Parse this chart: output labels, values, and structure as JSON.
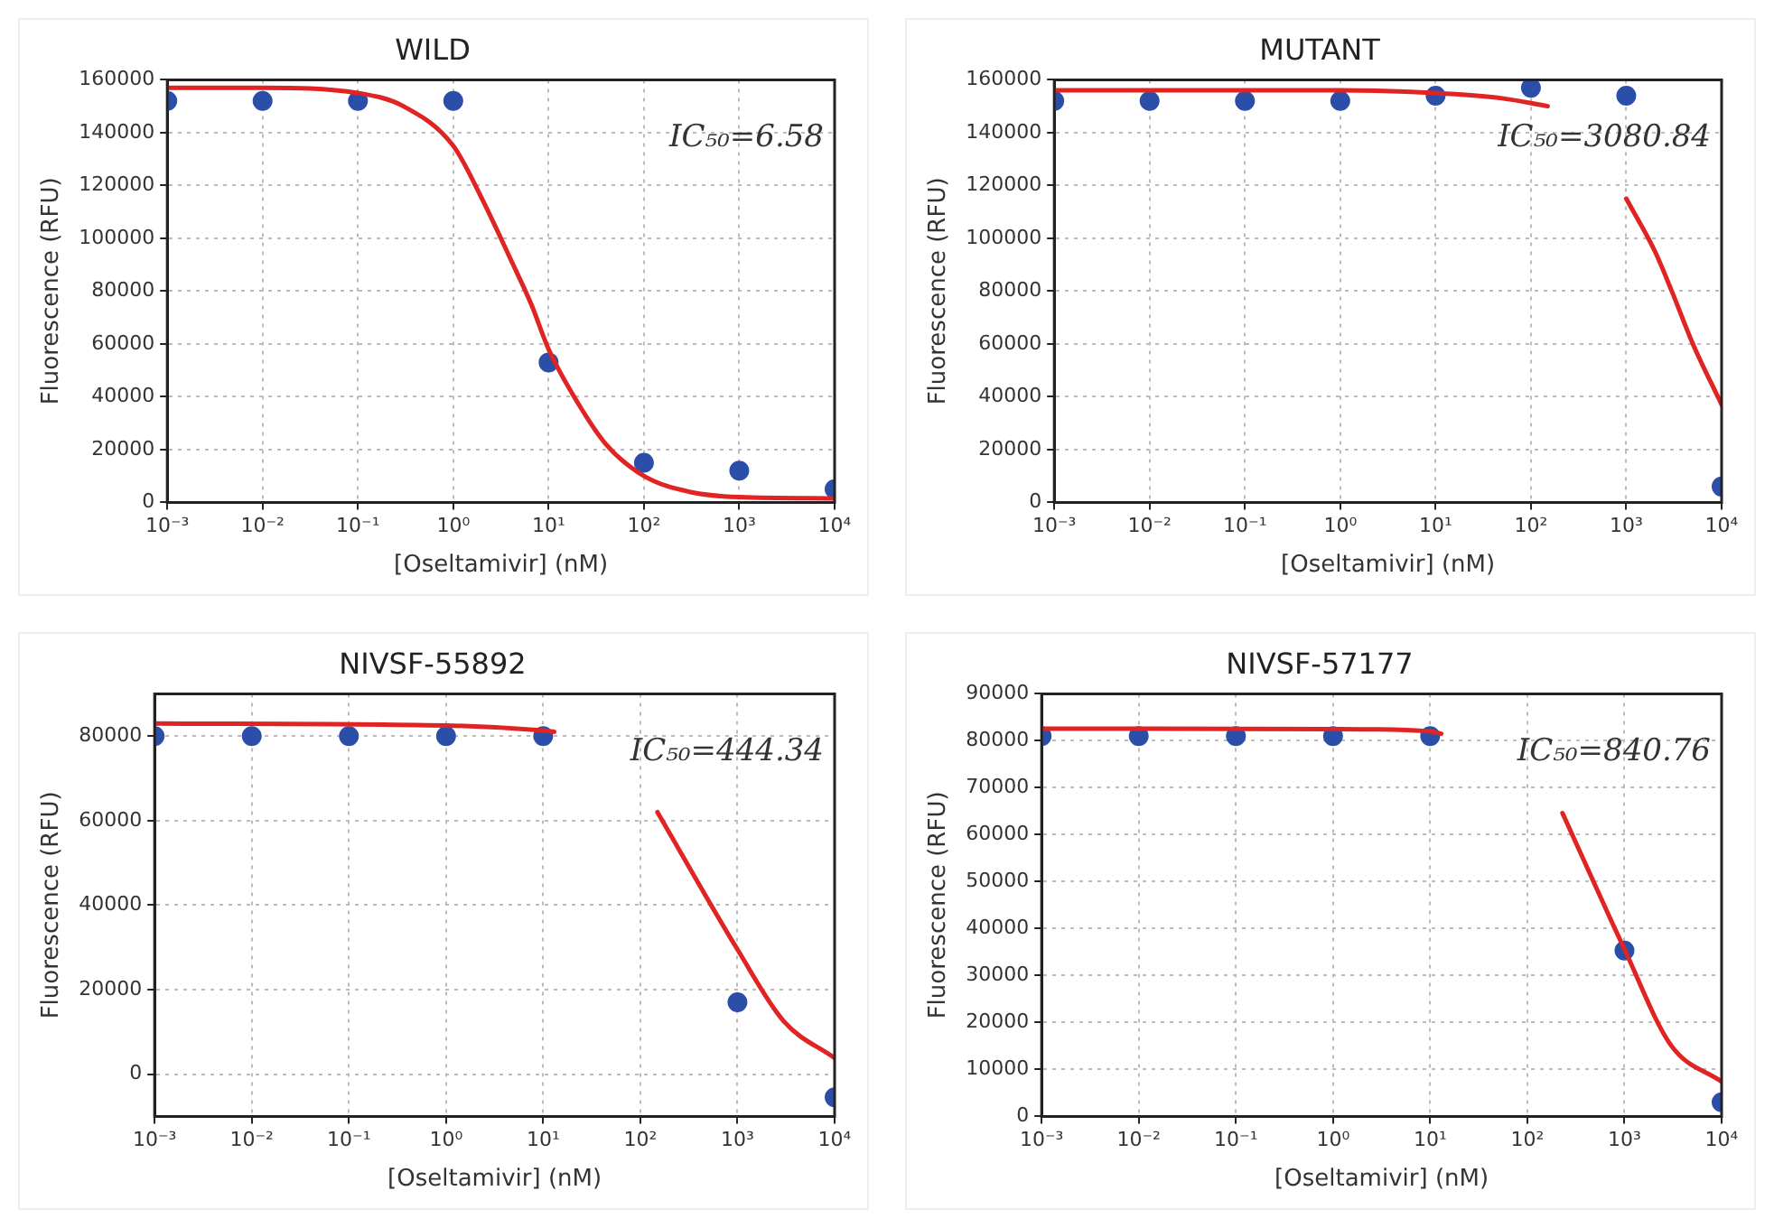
{
  "chart_data": [
    {
      "type": "scatter",
      "title": "WILD",
      "xlabel": "[Oseltamivir] (nM)",
      "ylabel": "Fluorescence (RFU)",
      "log": "x",
      "grid": true,
      "marker": "circle",
      "annotations": [
        "IC₅₀=6.58"
      ],
      "xlim": [
        0.001,
        10000
      ],
      "xticks": [
        {
          "value": 0.001,
          "label": "10⁻³"
        },
        {
          "value": 0.01,
          "label": "10⁻²"
        },
        {
          "value": 0.1,
          "label": "10⁻¹"
        },
        {
          "value": 1,
          "label": "10⁰"
        },
        {
          "value": 10,
          "label": "10¹"
        },
        {
          "value": 100,
          "label": "10²"
        },
        {
          "value": 1000,
          "label": "10³"
        },
        {
          "value": 10000,
          "label": "10⁴"
        }
      ],
      "ylim": [
        0,
        160000
      ],
      "yticks": [
        0,
        20000,
        40000,
        60000,
        80000,
        100000,
        120000,
        140000,
        160000
      ],
      "series": [
        {
          "type": "scatter",
          "color": "#2b4fa8",
          "x": [
            0.001,
            0.01,
            0.1,
            1,
            10,
            100,
            1000,
            10000
          ],
          "values": [
            152000,
            152000,
            152000,
            152000,
            53000,
            15000,
            12000,
            5000
          ]
        },
        {
          "type": "line",
          "marker": "none",
          "color": "#e02424",
          "x": [
            0.001,
            0.01,
            0.1,
            0.3,
            1,
            2,
            4,
            6.58,
            10,
            20,
            40,
            100,
            300,
            1000,
            10000
          ],
          "values": [
            157000,
            157000,
            155000,
            150000,
            135000,
            115000,
            92000,
            75000,
            58000,
            38000,
            22000,
            10000,
            4000,
            2000,
            1500
          ]
        }
      ]
    },
    {
      "type": "scatter",
      "title": "MUTANT",
      "xlabel": "[Oseltamivir] (nM)",
      "ylabel": "Fluorescence (RFU)",
      "log": "x",
      "grid": true,
      "marker": "circle",
      "annotations": [
        "IC₅₀=3080.84"
      ],
      "xlim": [
        0.001,
        10000
      ],
      "xticks": [
        {
          "value": 0.001,
          "label": "10⁻³"
        },
        {
          "value": 0.01,
          "label": "10⁻²"
        },
        {
          "value": 0.1,
          "label": "10⁻¹"
        },
        {
          "value": 1,
          "label": "10⁰"
        },
        {
          "value": 10,
          "label": "10¹"
        },
        {
          "value": 100,
          "label": "10²"
        },
        {
          "value": 1000,
          "label": "10³"
        },
        {
          "value": 10000,
          "label": "10⁴"
        }
      ],
      "ylim": [
        0,
        160000
      ],
      "yticks": [
        0,
        20000,
        40000,
        60000,
        80000,
        100000,
        120000,
        140000,
        160000
      ],
      "series": [
        {
          "type": "scatter",
          "color": "#2b4fa8",
          "x": [
            0.001,
            0.01,
            0.1,
            1,
            10,
            100,
            1000,
            10000
          ],
          "values": [
            152000,
            152000,
            152000,
            152000,
            154000,
            157000,
            154000,
            6000
          ]
        },
        {
          "type": "line",
          "marker": "none",
          "color": "#e02424",
          "x": [
            0.001,
            1,
            10,
            50,
            150,
            400,
            1000,
            2000,
            3000,
            5000,
            10000
          ],
          "values": [
            156000,
            156000,
            155000,
            153000,
            150000,
            null,
            115000,
            95000,
            80000,
            60000,
            37000
          ]
        }
      ]
    },
    {
      "type": "scatter",
      "title": "NIVSF-55892",
      "xlabel": "[Oseltamivir] (nM)",
      "ylabel": "Fluorescence (RFU)",
      "log": "x",
      "grid": true,
      "marker": "circle",
      "annotations": [
        "IC₅₀=444.34"
      ],
      "xlim": [
        0.001,
        10000
      ],
      "xticks": [
        {
          "value": 0.001,
          "label": "10⁻³"
        },
        {
          "value": 0.01,
          "label": "10⁻²"
        },
        {
          "value": 0.1,
          "label": "10⁻¹"
        },
        {
          "value": 1,
          "label": "10⁰"
        },
        {
          "value": 10,
          "label": "10¹"
        },
        {
          "value": 100,
          "label": "10²"
        },
        {
          "value": 1000,
          "label": "10³"
        },
        {
          "value": 10000,
          "label": "10⁴"
        }
      ],
      "ylim": [
        -10000,
        90000
      ],
      "yticks": [
        0,
        20000,
        40000,
        60000,
        80000
      ],
      "series": [
        {
          "type": "scatter",
          "color": "#2b4fa8",
          "x": [
            0.001,
            0.01,
            0.1,
            1,
            10,
            1000,
            10000
          ],
          "values": [
            80000,
            80000,
            80000,
            80000,
            80000,
            17000,
            -5500
          ]
        },
        {
          "type": "line",
          "marker": "none",
          "color": "#e02424",
          "x": [
            0.001,
            1,
            10,
            13,
            50,
            150,
            1000,
            3000,
            10000
          ],
          "values": [
            83000,
            82500,
            81300,
            81000,
            null,
            62000,
            29500,
            12500,
            3800
          ]
        }
      ]
    },
    {
      "type": "scatter",
      "title": "NIVSF-57177",
      "xlabel": "[Oseltamivir] (nM)",
      "ylabel": "Fluorescence (RFU)",
      "log": "x",
      "grid": true,
      "marker": "circle",
      "annotations": [
        "IC₅₀=840.76"
      ],
      "xlim": [
        0.001,
        10000
      ],
      "xticks": [
        {
          "value": 0.001,
          "label": "10⁻³"
        },
        {
          "value": 0.01,
          "label": "10⁻²"
        },
        {
          "value": 0.1,
          "label": "10⁻¹"
        },
        {
          "value": 1,
          "label": "10⁰"
        },
        {
          "value": 10,
          "label": "10¹"
        },
        {
          "value": 100,
          "label": "10²"
        },
        {
          "value": 1000,
          "label": "10³"
        },
        {
          "value": 10000,
          "label": "10⁴"
        }
      ],
      "ylim": [
        0,
        90000
      ],
      "yticks": [
        0,
        10000,
        20000,
        30000,
        40000,
        50000,
        60000,
        70000,
        80000,
        90000
      ],
      "series": [
        {
          "type": "scatter",
          "color": "#2b4fa8",
          "x": [
            0.001,
            0.01,
            0.1,
            1,
            10,
            1000,
            10000
          ],
          "values": [
            81000,
            81000,
            81000,
            81000,
            81000,
            35300,
            3000
          ]
        },
        {
          "type": "line",
          "marker": "none",
          "color": "#e02424",
          "x": [
            0.001,
            1,
            10,
            13,
            100,
            230,
            1000,
            3000,
            10000
          ],
          "values": [
            82600,
            82500,
            82000,
            81500,
            null,
            64600,
            35600,
            15200,
            7400
          ]
        }
      ]
    }
  ]
}
